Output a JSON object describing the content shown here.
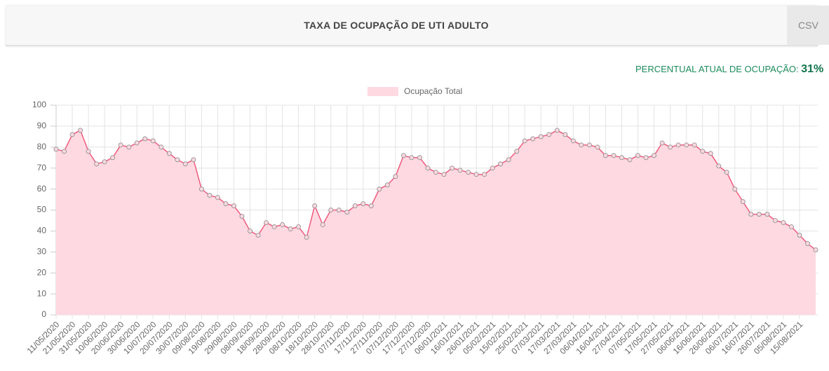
{
  "header": {
    "title": "TAXA DE OCUPAÇÃO DE UTI ADULTO",
    "button": "CSV"
  },
  "summary": {
    "label": "PERCENTUAL ATUAL DE OCUPAÇÃO:",
    "value": "31%"
  },
  "chart_data": {
    "type": "area",
    "categories": [
      "11/05/2020",
      null,
      "21/05/2020",
      null,
      "31/05/2020",
      null,
      "10/06/2020",
      null,
      "20/06/2020",
      null,
      "30/06/2020",
      null,
      "10/07/2020",
      null,
      "20/07/2020",
      null,
      "30/07/2020",
      null,
      "09/08/2020",
      null,
      "19/08/2020",
      null,
      "29/08/2020",
      null,
      "08/09/2020",
      null,
      "18/09/2020",
      null,
      "28/09/2020",
      null,
      "08/10/2020",
      null,
      "18/10/2020",
      null,
      "28/10/2020",
      null,
      "07/11/2020",
      null,
      "17/11/2020",
      null,
      "27/11/2020",
      null,
      "07/12/2020",
      null,
      "17/12/2020",
      null,
      "27/12/2020",
      null,
      "06/01/2021",
      null,
      "16/01/2021",
      null,
      "26/01/2021",
      null,
      "05/02/2021",
      null,
      "15/02/2021",
      null,
      "25/02/2021",
      null,
      "07/03/2021",
      null,
      "17/03/2021",
      null,
      "27/03/2021",
      null,
      "06/04/2021",
      null,
      "16/04/2021",
      null,
      "27/04/2021",
      null,
      "07/05/2021",
      null,
      "17/05/2021",
      null,
      "27/05/2021",
      null,
      "06/06/2021",
      null,
      "16/06/2021",
      null,
      "26/06/2021",
      null,
      "06/07/2021",
      null,
      "16/07/2021",
      null,
      "26/07/2021",
      null,
      "05/08/2021",
      null,
      "15/08/2021",
      null,
      null
    ],
    "series": [
      {
        "name": "Ocupação Total",
        "color": "#ef5b7d",
        "fill": "#ffd9e1",
        "values": [
          79,
          78,
          86,
          88,
          78,
          72,
          73,
          75,
          81,
          80,
          82,
          84,
          83,
          80,
          77,
          74,
          72,
          74,
          60,
          57,
          56,
          53,
          52,
          47,
          40,
          38,
          44,
          42,
          43,
          41,
          42,
          37,
          52,
          43,
          50,
          50,
          49,
          52,
          53,
          52,
          60,
          62,
          66,
          76,
          75,
          75,
          70,
          68,
          67,
          70,
          69,
          68,
          67,
          67,
          70,
          72,
          74,
          78,
          83,
          84,
          85,
          86,
          88,
          86,
          83,
          81,
          81,
          80,
          76,
          76,
          75,
          74,
          76,
          75,
          76,
          82,
          80,
          81,
          81,
          81,
          78,
          77,
          71,
          68,
          60,
          54,
          48,
          48,
          48,
          45,
          44,
          42,
          38,
          34,
          31
        ]
      }
    ],
    "ylim": [
      0,
      100
    ],
    "yticks": [
      0,
      10,
      20,
      30,
      40,
      50,
      60,
      70,
      80,
      90,
      100
    ],
    "grid": true,
    "legend": "top"
  }
}
